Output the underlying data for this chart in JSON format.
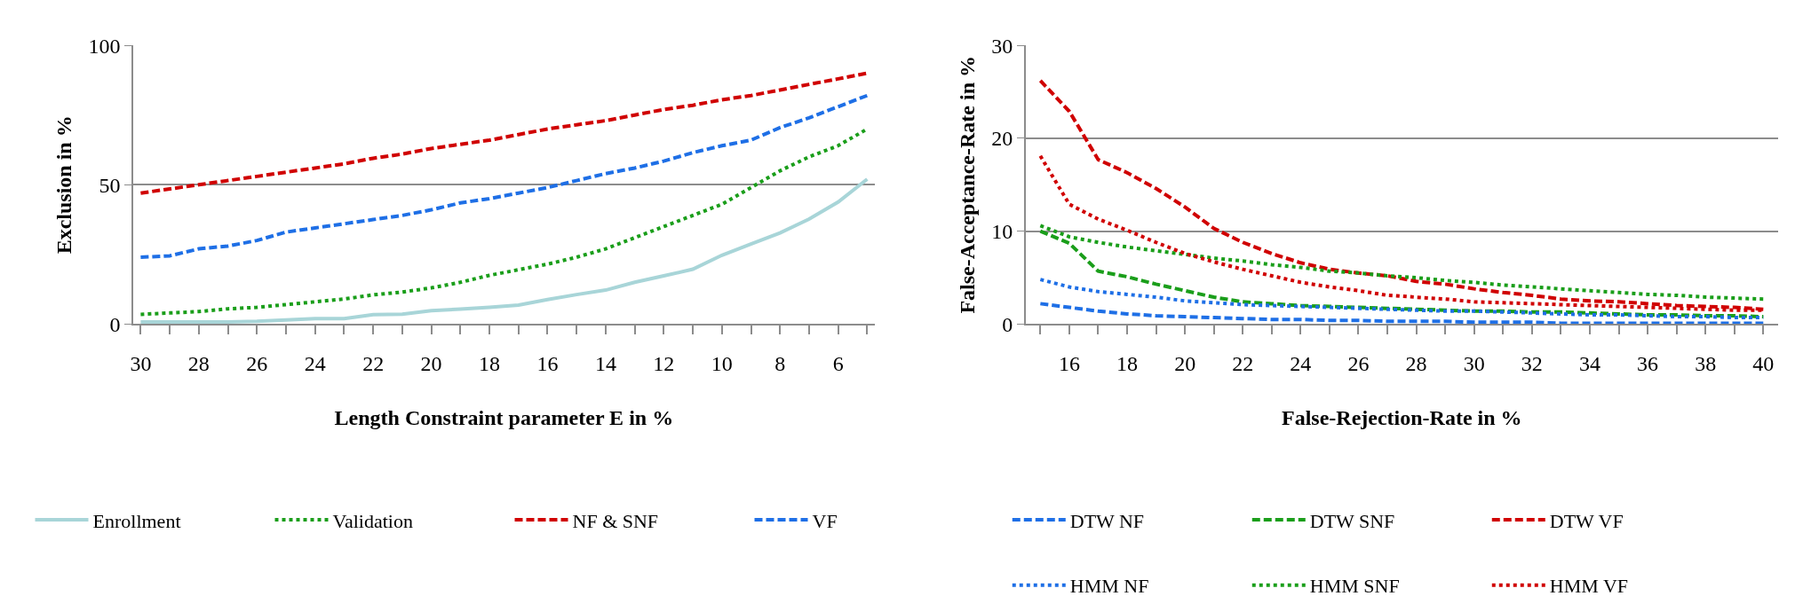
{
  "chart_data": [
    {
      "type": "line",
      "xlabel": "Length Constraint parameter E in %",
      "ylabel": "Exclusion in %",
      "x": [
        30,
        29,
        28,
        27,
        26,
        25,
        24,
        23,
        22,
        21,
        20,
        19,
        18,
        17,
        16,
        15,
        14,
        13,
        12,
        11,
        10,
        9,
        8,
        7,
        6,
        5
      ],
      "series": [
        {
          "name": "Enrollment",
          "color": "#a8d5d8",
          "line_style": "solid",
          "values": [
            0.8,
            0.8,
            0.8,
            0.8,
            1,
            1.5,
            2,
            2,
            3.4,
            3.6,
            4.8,
            5.4,
            6,
            6.8,
            8.8,
            10.6,
            12.2,
            15,
            17.3,
            19.7,
            24.7,
            28.7,
            32.7,
            37.7,
            43.8,
            52
          ]
        },
        {
          "name": "Validation",
          "color": "#1a9e1a",
          "line_style": "dotted",
          "values": [
            3.5,
            4,
            4.5,
            5.5,
            6,
            7,
            8,
            9,
            10.5,
            11.5,
            13,
            15,
            17.5,
            19.5,
            21.5,
            24,
            27,
            31,
            35,
            39,
            43,
            49,
            55,
            60,
            64,
            70
          ]
        },
        {
          "name": "NF & SNF",
          "color": "#d00000",
          "line_style": "dashed",
          "values": [
            47,
            48.5,
            50,
            51.5,
            53,
            54.5,
            56,
            57.5,
            59.5,
            61,
            63,
            64.5,
            66,
            68,
            70,
            71.5,
            73,
            75,
            77,
            78.5,
            80.5,
            82,
            84,
            86,
            88,
            90
          ]
        },
        {
          "name": "VF",
          "color": "#1e6fe6",
          "line_style": "dashed",
          "values": [
            24,
            24.5,
            27,
            28,
            30,
            33,
            34.5,
            36,
            37.5,
            39,
            41,
            43.5,
            45,
            47,
            49,
            51.5,
            54,
            56,
            58.5,
            61.5,
            64,
            66,
            70.5,
            74,
            78,
            82
          ]
        }
      ],
      "xlim": [
        30.25,
        4.75
      ],
      "xticks": [
        30,
        {
          "value": 29,
          "label": null
        },
        28,
        {
          "value": 27,
          "label": null
        },
        26,
        {
          "value": 25,
          "label": null
        },
        24,
        {
          "value": 23,
          "label": null
        },
        22,
        {
          "value": 21,
          "label": null
        },
        20,
        {
          "value": 19,
          "label": null
        },
        18,
        {
          "value": 17,
          "label": null
        },
        16,
        {
          "value": 15,
          "label": null
        },
        14,
        {
          "value": 13,
          "label": null
        },
        12,
        {
          "value": 11,
          "label": null
        },
        10,
        {
          "value": 9,
          "label": null
        },
        8,
        {
          "value": 7,
          "label": null
        },
        6,
        {
          "value": 5,
          "label": null
        }
      ],
      "ylim": [
        0,
        100
      ],
      "yticks": [
        0,
        50,
        100
      ],
      "grid": "y",
      "legend": "bottom",
      "marker": "none"
    },
    {
      "type": "line",
      "xlabel": "False-Rejection-Rate in %",
      "ylabel": "False-Acceptance-Rate in %",
      "x": [
        15,
        16,
        17,
        18,
        19,
        20,
        21,
        22,
        23,
        24,
        25,
        26,
        27,
        28,
        29,
        30,
        31,
        32,
        33,
        34,
        35,
        36,
        37,
        38,
        39,
        40
      ],
      "series": [
        {
          "name": "DTW NF",
          "color": "#1e6fe6",
          "line_style": "dashed",
          "values": [
            2.2,
            1.8,
            1.4,
            1.1,
            0.9,
            0.8,
            0.7,
            0.6,
            0.5,
            0.5,
            0.4,
            0.4,
            0.3,
            0.3,
            0.3,
            0.2,
            0.2,
            0.2,
            0.1,
            0.1,
            0.1,
            0.1,
            0.1,
            0.1,
            0.1,
            0.1
          ]
        },
        {
          "name": "DTW SNF",
          "color": "#1a9e1a",
          "line_style": "dashed",
          "values": [
            10,
            8.7,
            5.7,
            5.1,
            4.3,
            3.6,
            2.9,
            2.4,
            2.2,
            2.0,
            1.9,
            1.8,
            1.7,
            1.6,
            1.5,
            1.4,
            1.4,
            1.3,
            1.3,
            1.2,
            1.1,
            1.0,
            1.0,
            0.9,
            0.9,
            0.8
          ]
        },
        {
          "name": "DTW VF",
          "color": "#d00000",
          "line_style": "dashed",
          "values": [
            26.2,
            22.9,
            17.7,
            16.3,
            14.6,
            12.6,
            10.3,
            8.8,
            7.6,
            6.6,
            5.9,
            5.5,
            5.2,
            4.6,
            4.3,
            3.8,
            3.4,
            3.1,
            2.7,
            2.5,
            2.4,
            2.2,
            2.0,
            1.9,
            1.8,
            1.6
          ]
        },
        {
          "name": "HMM NF",
          "color": "#1e6fe6",
          "line_style": "dotted",
          "values": [
            4.8,
            4.0,
            3.5,
            3.2,
            2.9,
            2.5,
            2.3,
            2.1,
            2.0,
            1.9,
            1.8,
            1.7,
            1.6,
            1.5,
            1.4,
            1.4,
            1.3,
            1.2,
            1.1,
            1.0,
            1.0,
            0.9,
            0.8,
            0.8,
            0.7,
            0.7
          ]
        },
        {
          "name": "HMM SNF",
          "color": "#1a9e1a",
          "line_style": "dotted",
          "values": [
            10.6,
            9.4,
            8.8,
            8.3,
            7.9,
            7.5,
            7.1,
            6.8,
            6.4,
            6.1,
            5.7,
            5.5,
            5.2,
            5.0,
            4.7,
            4.5,
            4.2,
            4.0,
            3.8,
            3.6,
            3.4,
            3.2,
            3.1,
            2.9,
            2.8,
            2.7
          ]
        },
        {
          "name": "HMM VF",
          "color": "#d00000",
          "line_style": "dotted",
          "values": [
            18.1,
            12.9,
            11.3,
            10.1,
            8.8,
            7.6,
            6.7,
            5.9,
            5.2,
            4.5,
            4.0,
            3.6,
            3.1,
            2.9,
            2.7,
            2.4,
            2.3,
            2.2,
            2.1,
            2.0,
            1.9,
            1.8,
            1.7,
            1.6,
            1.5,
            1.5
          ]
        }
      ],
      "xlim": [
        14.5,
        40.5
      ],
      "xticks": [
        {
          "value": 15,
          "label": null
        },
        16,
        {
          "value": 17,
          "label": null
        },
        18,
        {
          "value": 19,
          "label": null
        },
        20,
        {
          "value": 21,
          "label": null
        },
        22,
        {
          "value": 23,
          "label": null
        },
        24,
        {
          "value": 25,
          "label": null
        },
        26,
        {
          "value": 27,
          "label": null
        },
        28,
        {
          "value": 29,
          "label": null
        },
        30,
        {
          "value": 31,
          "label": null
        },
        32,
        {
          "value": 33,
          "label": null
        },
        34,
        {
          "value": 35,
          "label": null
        },
        36,
        {
          "value": 37,
          "label": null
        },
        38,
        {
          "value": 39,
          "label": null
        },
        40
      ],
      "ylim": [
        0,
        30
      ],
      "yticks": [
        0,
        10,
        20,
        30
      ],
      "grid": "y",
      "legend": "bottom",
      "marker": "none"
    }
  ]
}
